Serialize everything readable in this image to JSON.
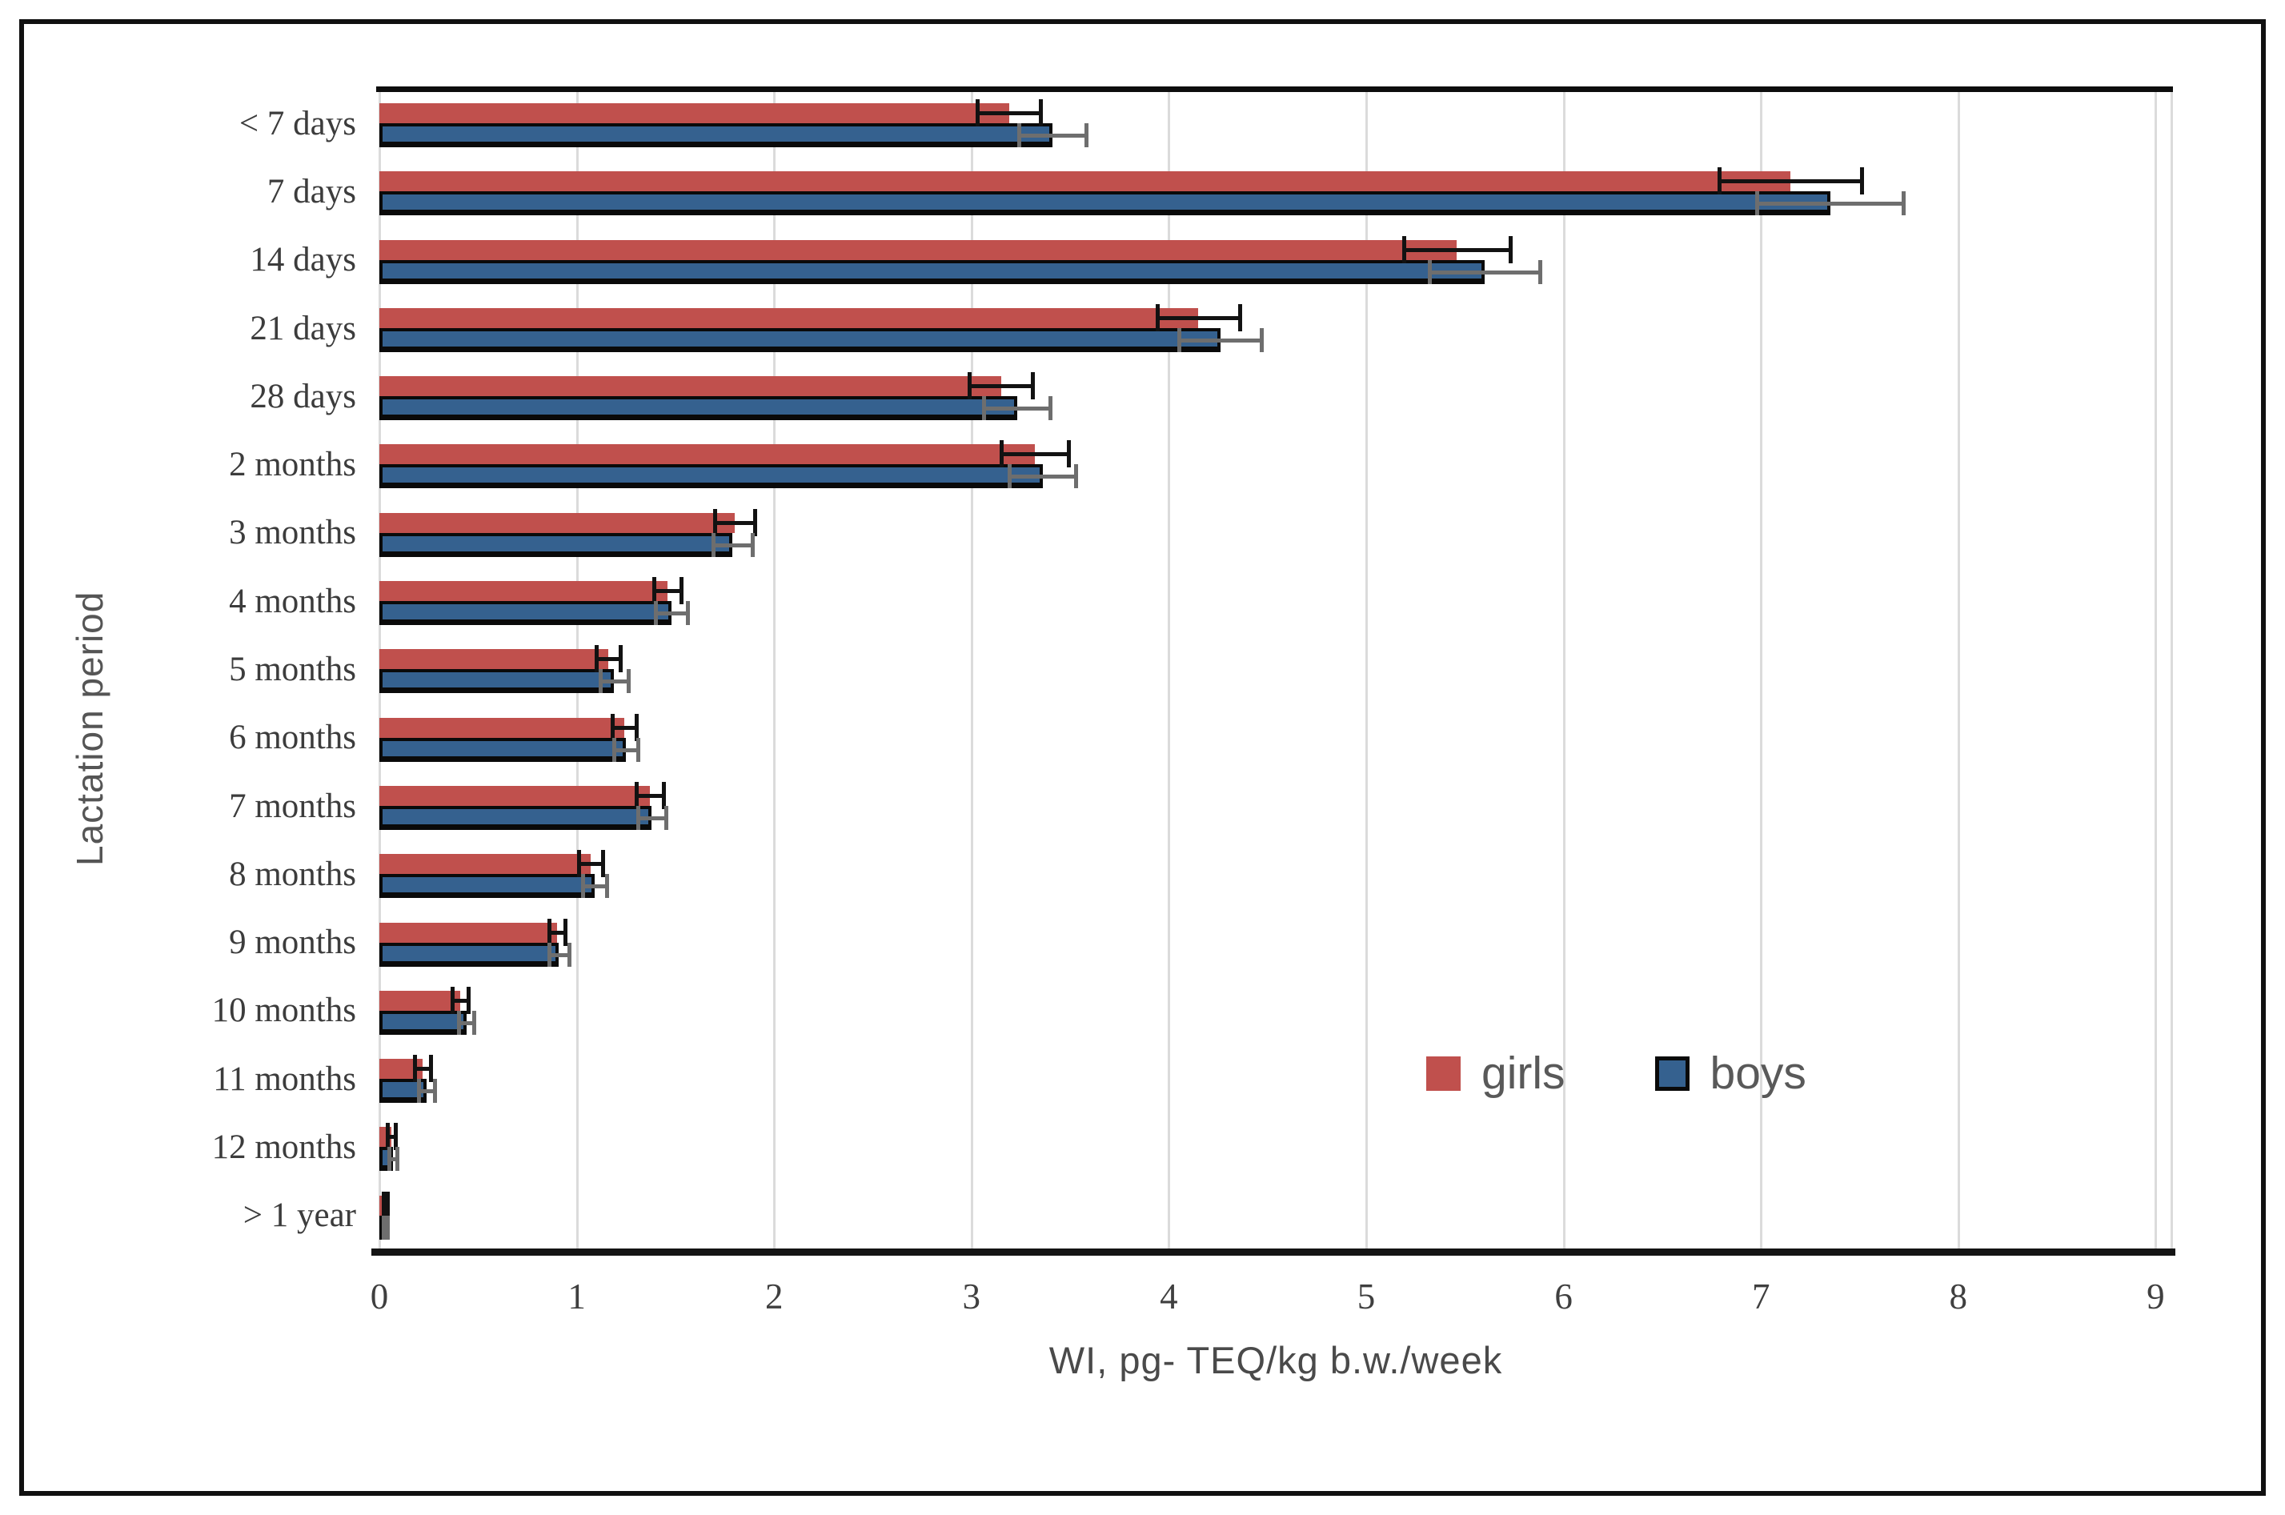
{
  "chart_data": {
    "type": "bar",
    "orientation": "horizontal",
    "xlabel": "WI, pg- TEQ/kg b.w./week",
    "ylabel": "Lactation period",
    "categories": [
      "< 7 days",
      "7 days",
      "14 days",
      "21 days",
      "28 days",
      "2 months",
      "3 months",
      "4 months",
      "5 months",
      "6 months",
      "7 months",
      "8 months",
      "9 months",
      "10 months",
      "11 months",
      "12 months",
      "> 1 year"
    ],
    "series": [
      {
        "name": "girls",
        "color": "#C0504D",
        "error_color": "#121212",
        "values": [
          3.19,
          7.15,
          5.46,
          4.15,
          3.15,
          3.32,
          1.8,
          1.46,
          1.16,
          1.24,
          1.37,
          1.07,
          0.9,
          0.41,
          0.22,
          0.06,
          0.03
        ],
        "errors": [
          0.16,
          0.36,
          0.27,
          0.21,
          0.16,
          0.17,
          0.1,
          0.07,
          0.06,
          0.06,
          0.07,
          0.06,
          0.04,
          0.04,
          0.04,
          0.02,
          0.01
        ]
      },
      {
        "name": "boys",
        "color": "#35618F",
        "error_color": "#6E6E6E",
        "values": [
          3.41,
          7.35,
          5.6,
          4.26,
          3.23,
          3.36,
          1.79,
          1.48,
          1.19,
          1.25,
          1.38,
          1.09,
          0.91,
          0.44,
          0.24,
          0.07,
          0.03
        ],
        "errors": [
          0.17,
          0.37,
          0.28,
          0.21,
          0.17,
          0.17,
          0.1,
          0.08,
          0.07,
          0.06,
          0.07,
          0.06,
          0.05,
          0.04,
          0.04,
          0.02,
          0.01
        ]
      }
    ],
    "xlim": [
      0,
      9
    ],
    "xticks": [
      "0",
      "1",
      "2",
      "3",
      "4",
      "5",
      "6",
      "7",
      "8",
      "9"
    ],
    "grid": true,
    "legend_position": "inside-right",
    "background": "#ffffff",
    "gridline_color": "#DBDBDB"
  },
  "legend": {
    "girls_label": "girls",
    "boys_label": "boys"
  }
}
